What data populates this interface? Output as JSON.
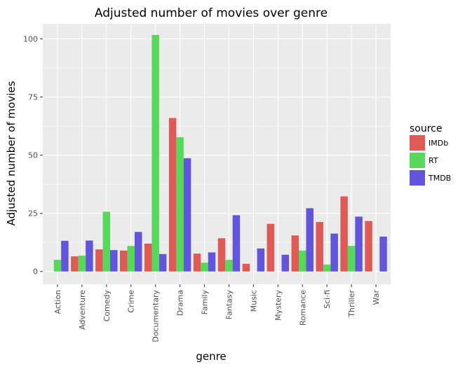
{
  "chart_data": {
    "type": "bar",
    "title": "Adjusted number of movies over genre",
    "xlabel": "genre",
    "ylabel": "Adjusted number of movies",
    "categories": [
      "Action",
      "Adventure",
      "Comedy",
      "Crime",
      "Documentary",
      "Drama",
      "Family",
      "Fantasy",
      "Music",
      "Mystery",
      "Romance",
      "Sci-fi",
      "Thriller",
      "War"
    ],
    "ylim": [
      -5.5,
      106.5
    ],
    "yticks": [
      0,
      25,
      50,
      75,
      100
    ],
    "grid": true,
    "legend": {
      "title": "source",
      "position": "right"
    },
    "series": [
      {
        "name": "IMDb",
        "color": "#e05a55",
        "values": [
          null,
          6.5,
          9.5,
          9,
          12,
          66,
          7.7,
          14.3,
          3.3,
          20.5,
          15.5,
          21.3,
          32.3,
          21.7
        ]
      },
      {
        "name": "RT",
        "color": "#56d95a",
        "values": [
          5,
          6.8,
          25.7,
          11,
          101.7,
          57.7,
          3.8,
          5,
          null,
          null,
          9,
          3,
          11,
          null
        ]
      },
      {
        "name": "TMDB",
        "color": "#6155dc",
        "values": [
          13.2,
          13.3,
          9.2,
          17,
          7.5,
          48.7,
          8.2,
          24.2,
          9.9,
          7.2,
          27.2,
          16.3,
          23.6,
          15
        ]
      }
    ]
  }
}
